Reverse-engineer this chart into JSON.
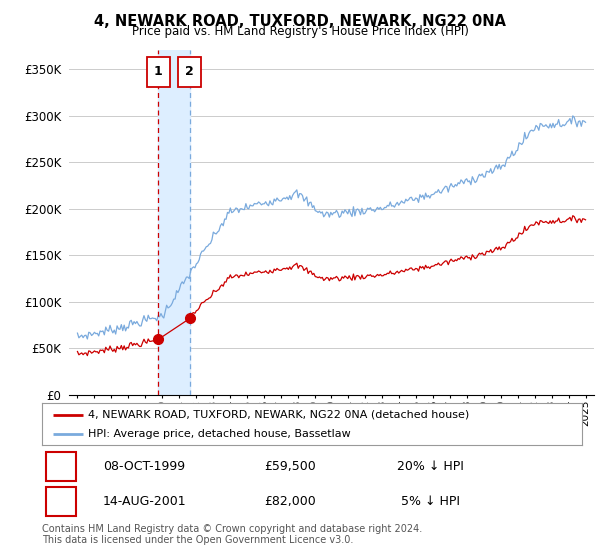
{
  "title": "4, NEWARK ROAD, TUXFORD, NEWARK, NG22 0NA",
  "subtitle": "Price paid vs. HM Land Registry's House Price Index (HPI)",
  "ylabel_ticks": [
    "£0",
    "£50K",
    "£100K",
    "£150K",
    "£200K",
    "£250K",
    "£300K",
    "£350K"
  ],
  "ytick_values": [
    0,
    50000,
    100000,
    150000,
    200000,
    250000,
    300000,
    350000
  ],
  "ylim": [
    0,
    370000
  ],
  "xlim_min": 1994.5,
  "xlim_max": 2025.5,
  "sale1": {
    "date_num": 1999.77,
    "price": 59500,
    "label": "1",
    "date_str": "08-OCT-1999",
    "pct": "20% ↓ HPI"
  },
  "sale2": {
    "date_num": 2001.63,
    "price": 82000,
    "label": "2",
    "date_str": "14-AUG-2001",
    "pct": "5% ↓ HPI"
  },
  "legend_property": "4, NEWARK ROAD, TUXFORD, NEWARK, NG22 0NA (detached house)",
  "legend_hpi": "HPI: Average price, detached house, Bassetlaw",
  "footer": "Contains HM Land Registry data © Crown copyright and database right 2024.\nThis data is licensed under the Open Government Licence v3.0.",
  "property_color": "#cc0000",
  "hpi_color": "#7aaadd",
  "shade_color": "#ddeeff",
  "background_color": "#ffffff",
  "grid_color": "#cccccc"
}
